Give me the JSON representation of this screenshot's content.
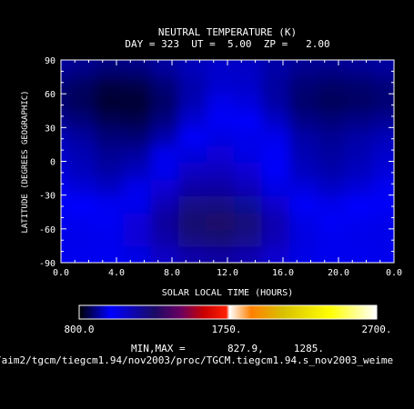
{
  "title": "NEUTRAL TEMPERATURE (K)",
  "subtitle": "DAY = 323  UT =  5.00  ZP =   2.00",
  "minmax_text": "MIN,MAX =       827.9,     1285.",
  "filepath": "/aim2/tgcm/tiegcm1.94/nov2003/proc/TGCM.tiegcm1.94.s_nov2003_weime",
  "colorbar": {
    "min_label": "800.0",
    "mid_label": "1750.",
    "max_label": "2700.",
    "range": [
      800,
      2700
    ],
    "stops": [
      {
        "value": 800,
        "color": "#000000"
      },
      {
        "value": 1000,
        "color": "#0000ff"
      },
      {
        "value": 1280,
        "color": "#1a0a66"
      },
      {
        "value": 1450,
        "color": "#6a0060"
      },
      {
        "value": 1600,
        "color": "#cc0000"
      },
      {
        "value": 1740,
        "color": "#ff2000"
      },
      {
        "value": 1760,
        "color": "#ffffff"
      },
      {
        "value": 1900,
        "color": "#ff8000"
      },
      {
        "value": 2100,
        "color": "#d8c000"
      },
      {
        "value": 2400,
        "color": "#ffff00"
      },
      {
        "value": 2700,
        "color": "#ffffff"
      }
    ]
  },
  "chart_data": {
    "type": "heatmap",
    "title": "NEUTRAL TEMPERATURE (K)",
    "xlabel": "SOLAR LOCAL TIME (HOURS)",
    "ylabel": "LATITUDE (DEGREES GEOGRAPHIC)",
    "xlim": [
      0,
      24
    ],
    "ylim": [
      -90,
      90
    ],
    "x_ticks": [
      "0.0",
      "4.0",
      "8.0",
      "12.0",
      "16.0",
      "20.0",
      "0.0"
    ],
    "y_ticks": [
      "90",
      "60",
      "30",
      "0",
      "-30",
      "-60",
      "-90"
    ],
    "value_range": [
      827.9,
      1285
    ],
    "x": [
      0,
      2,
      4,
      6,
      8,
      10,
      12,
      14,
      16,
      18,
      20,
      22,
      24
    ],
    "y": [
      90,
      75,
      60,
      45,
      30,
      15,
      0,
      -15,
      -30,
      -45,
      -60,
      -75,
      -90
    ],
    "z": [
      [
        930,
        920,
        910,
        915,
        930,
        945,
        955,
        950,
        935,
        925,
        925,
        928,
        930
      ],
      [
        920,
        905,
        890,
        895,
        920,
        945,
        960,
        955,
        930,
        910,
        905,
        912,
        920
      ],
      [
        895,
        875,
        850,
        855,
        890,
        935,
        965,
        960,
        925,
        890,
        880,
        885,
        895
      ],
      [
        890,
        870,
        840,
        840,
        880,
        940,
        985,
        975,
        930,
        885,
        870,
        878,
        890
      ],
      [
        915,
        895,
        865,
        860,
        900,
        965,
        1015,
        1005,
        955,
        905,
        895,
        905,
        915
      ],
      [
        945,
        925,
        895,
        890,
        935,
        1005,
        1050,
        1035,
        985,
        930,
        915,
        930,
        945
      ],
      [
        960,
        940,
        915,
        925,
        985,
        1060,
        1075,
        1045,
        995,
        940,
        925,
        940,
        960
      ],
      [
        970,
        950,
        930,
        950,
        1030,
        1110,
        1120,
        1080,
        1010,
        950,
        935,
        950,
        970
      ],
      [
        990,
        970,
        955,
        985,
        1080,
        1165,
        1170,
        1130,
        1045,
        975,
        955,
        970,
        990
      ],
      [
        1015,
        1000,
        990,
        1030,
        1140,
        1220,
        1225,
        1185,
        1095,
        1010,
        985,
        1000,
        1015
      ],
      [
        1035,
        1025,
        1020,
        1070,
        1180,
        1265,
        1285,
        1245,
        1145,
        1045,
        1015,
        1025,
        1035
      ],
      [
        1040,
        1035,
        1030,
        1075,
        1160,
        1235,
        1250,
        1215,
        1135,
        1055,
        1030,
        1035,
        1040
      ],
      [
        1035,
        1030,
        1025,
        1050,
        1110,
        1160,
        1175,
        1150,
        1090,
        1045,
        1030,
        1032,
        1035
      ]
    ]
  }
}
